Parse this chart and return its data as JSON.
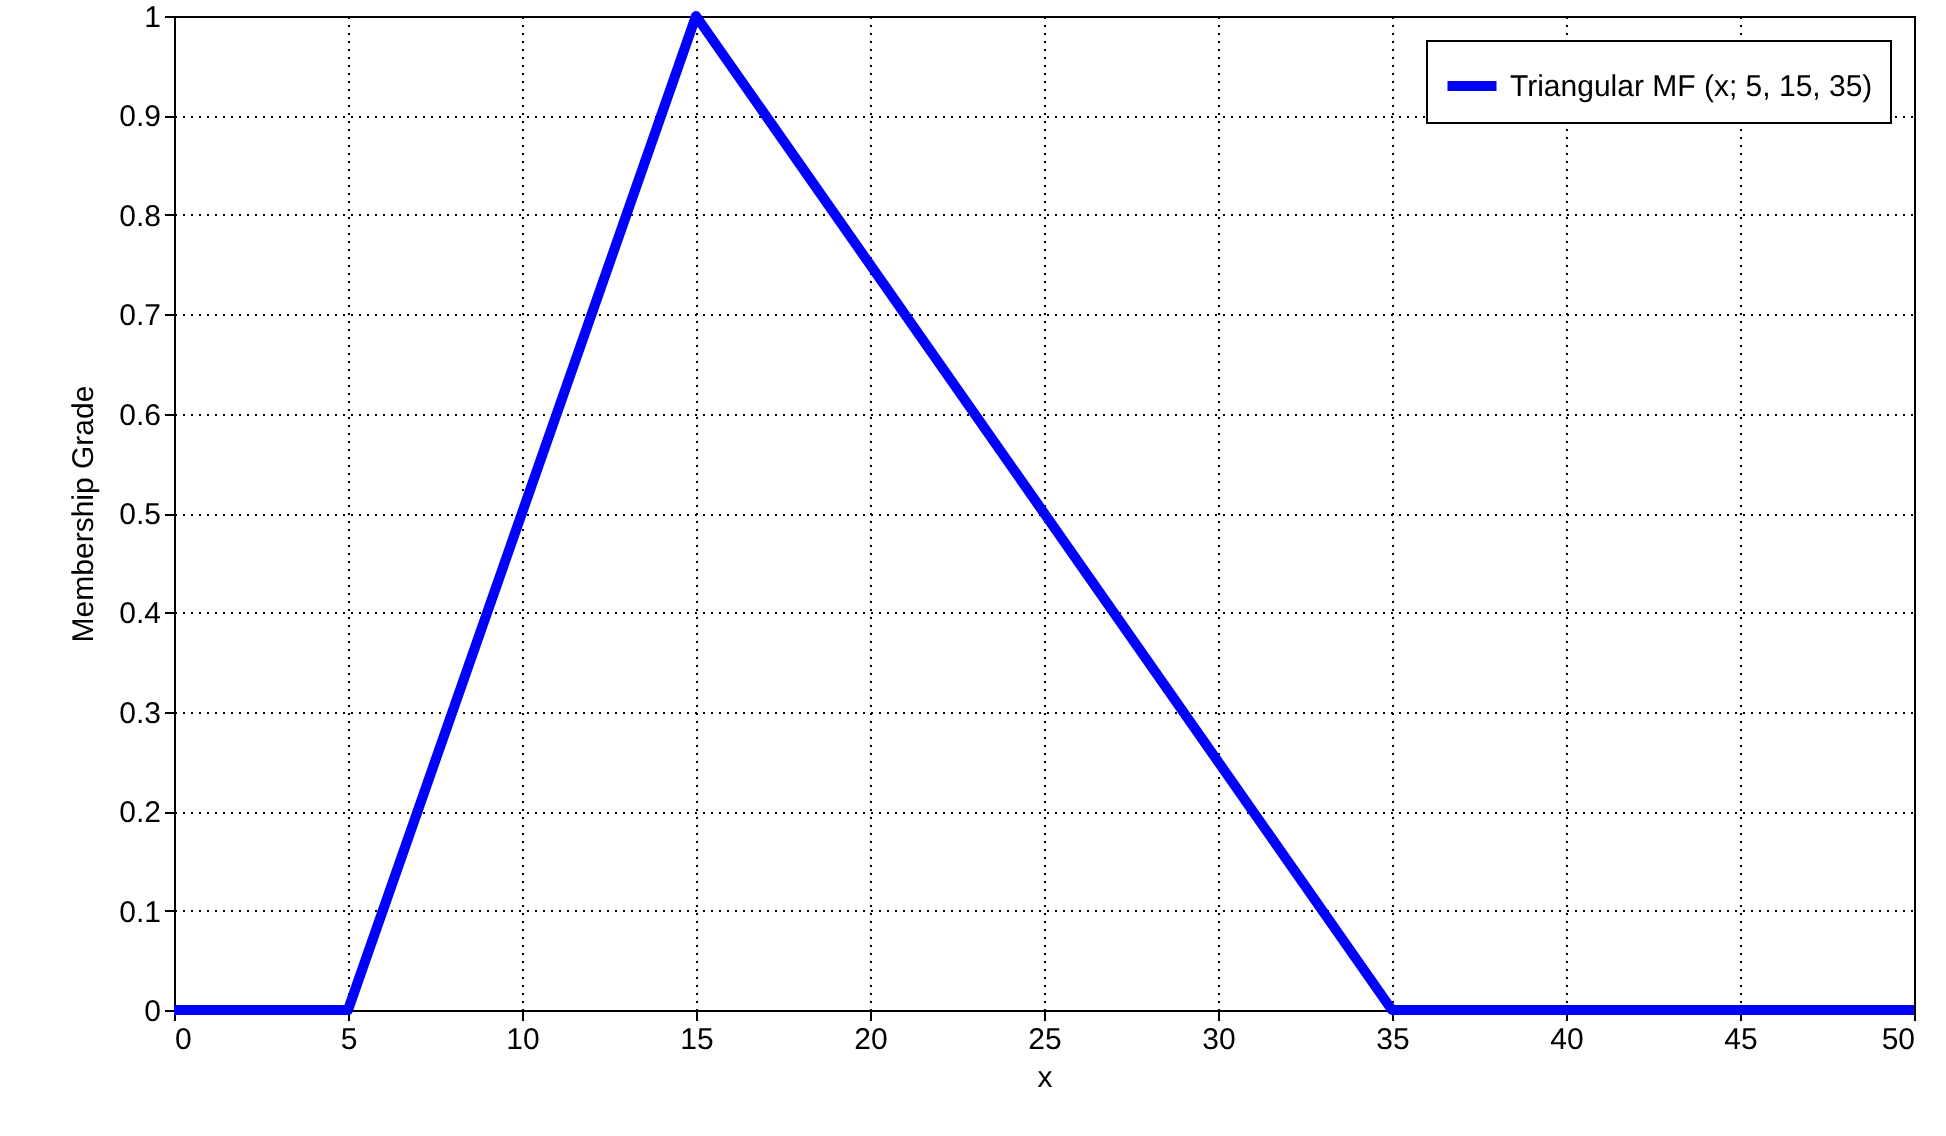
{
  "chart_data": {
    "type": "line",
    "xlabel": "x",
    "ylabel": "Membership Grade",
    "x": [
      0,
      5,
      15,
      35,
      50
    ],
    "series": [
      {
        "name": "Triangular MF (x; 5, 15, 35)",
        "color": "#0000ff",
        "values": [
          0,
          0,
          1,
          0,
          0
        ]
      }
    ],
    "xlim": [
      0,
      50
    ],
    "xticks": [
      0,
      5,
      10,
      15,
      20,
      25,
      30,
      35,
      40,
      45,
      50
    ],
    "ylim": [
      0,
      1
    ],
    "yticks": [
      0,
      0.1,
      0.2,
      0.3,
      0.4,
      0.5,
      0.6,
      0.7,
      0.8,
      0.9,
      1
    ],
    "grid": true,
    "legend": "top right",
    "line_style": "solid",
    "marker": "none"
  }
}
